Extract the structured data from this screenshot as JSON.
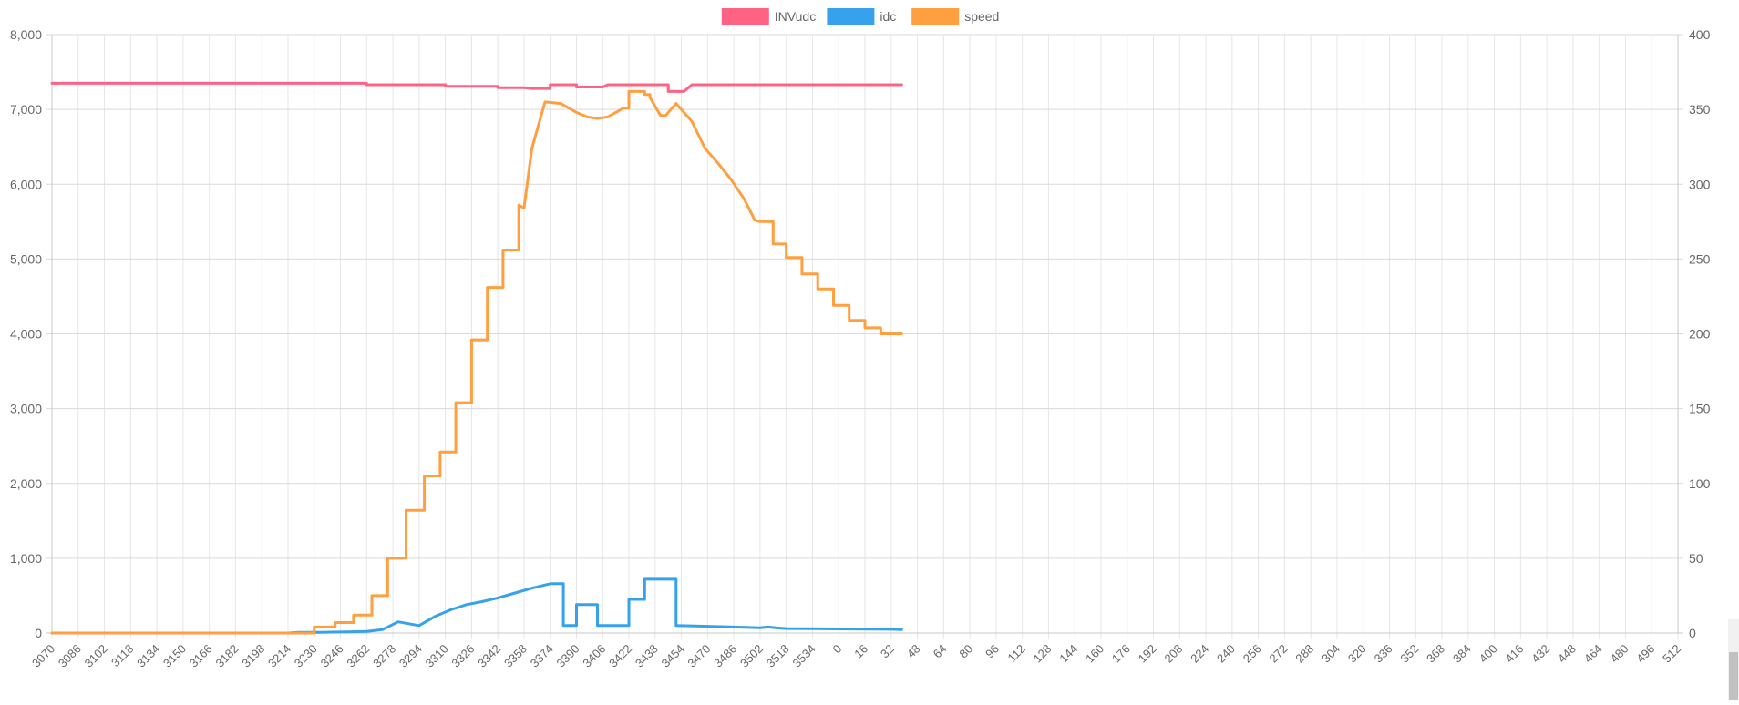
{
  "chart_data": {
    "type": "line",
    "legend_position": "top-center",
    "grid": true,
    "x_labels": [
      "3070",
      "3086",
      "3102",
      "3118",
      "3134",
      "3150",
      "3166",
      "3182",
      "3198",
      "3214",
      "3230",
      "3246",
      "3262",
      "3278",
      "3294",
      "3310",
      "3326",
      "3342",
      "3358",
      "3374",
      "3390",
      "3406",
      "3422",
      "3438",
      "3454",
      "3470",
      "3486",
      "3502",
      "3518",
      "3534",
      "0",
      "16",
      "32",
      "48",
      "64",
      "80",
      "96",
      "112",
      "128",
      "144",
      "160",
      "176",
      "192",
      "208",
      "224",
      "240",
      "256",
      "272",
      "288",
      "304",
      "320",
      "336",
      "352",
      "368",
      "384",
      "400",
      "416",
      "432",
      "448",
      "464",
      "480",
      "496",
      "512"
    ],
    "y_left": {
      "min": 0,
      "max": 8000,
      "ticks": [
        "0",
        "1,000",
        "2,000",
        "3,000",
        "4,000",
        "5,000",
        "6,000",
        "7,000",
        "8,000"
      ]
    },
    "y_right": {
      "min": 0,
      "max": 400,
      "ticks": [
        "0",
        "50",
        "100",
        "150",
        "200",
        "250",
        "300",
        "350",
        "400"
      ]
    },
    "series": [
      {
        "name": "INVudc",
        "color": "#ff6384",
        "axis": "left",
        "x": [
          0,
          12,
          12,
          15,
          15,
          17,
          17,
          18,
          18.3,
          18.6,
          18.8,
          19,
          19,
          20,
          20,
          21,
          21.2,
          21.5,
          21.8,
          22,
          22,
          23,
          23.5,
          23.5,
          23.9,
          24.1,
          24.4,
          24.4,
          25,
          26,
          28,
          30,
          32.4
        ],
        "values": [
          7350,
          7350,
          7330,
          7330,
          7310,
          7310,
          7290,
          7290,
          7280,
          7280,
          7280,
          7280,
          7330,
          7330,
          7300,
          7300,
          7330,
          7330,
          7330,
          7330,
          7330,
          7330,
          7330,
          7240,
          7240,
          7240,
          7330,
          7330,
          7330,
          7330,
          7330,
          7330,
          7330
        ]
      },
      {
        "name": "idc",
        "color": "#36a2eb",
        "axis": "left",
        "x": [
          0,
          9,
          9.2,
          9.2,
          9.4,
          9.4,
          10.2,
          10.2,
          11.2,
          11.2,
          12,
          12,
          12.6,
          12.6,
          13.2,
          13.2,
          14,
          14,
          14.6,
          14.6,
          15.2,
          15.2,
          15.8,
          15.8,
          16.4,
          16.4,
          17,
          17,
          17.6,
          17.6,
          18.3,
          18.3,
          19,
          19,
          19.5,
          19.5,
          20,
          20,
          20.6,
          20.6,
          20.8,
          20.8,
          22,
          22,
          22.6,
          22.6,
          23.2,
          23.2,
          23.8,
          23.8,
          25,
          26,
          27,
          27.3,
          27.6,
          28,
          30,
          32,
          32.4
        ],
        "values": [
          0,
          0,
          5,
          5,
          8,
          8,
          10,
          10,
          15,
          15,
          22,
          22,
          45,
          45,
          150,
          150,
          100,
          100,
          220,
          220,
          310,
          310,
          380,
          380,
          420,
          420,
          470,
          470,
          530,
          530,
          600,
          600,
          660,
          660,
          660,
          100,
          100,
          380,
          380,
          380,
          380,
          100,
          100,
          450,
          450,
          720,
          720,
          720,
          720,
          100,
          90,
          80,
          70,
          80,
          70,
          60,
          55,
          50,
          45
        ]
      },
      {
        "name": "speed",
        "color": "#ff9f40",
        "axis": "right",
        "x": [
          0,
          10,
          10,
          10.8,
          10.8,
          11.5,
          11.5,
          12.2,
          12.2,
          12.8,
          12.8,
          13.5,
          13.5,
          14.2,
          14.2,
          14.8,
          14.8,
          15.4,
          15.4,
          16,
          16,
          16.6,
          16.6,
          17.2,
          17.2,
          17.8,
          17.8,
          18,
          18.3,
          18.3,
          18.8,
          18.8,
          19.4,
          19.4,
          20,
          20,
          20.4,
          20.4,
          20.8,
          20.8,
          21.2,
          21.2,
          21.8,
          21.8,
          22,
          22,
          22.6,
          22.6,
          22.8,
          22.8,
          23.2,
          23.4,
          23.4,
          23.8,
          23.8,
          24.4,
          24.4,
          24.9,
          24.9,
          25.4,
          25.4,
          25.9,
          25.9,
          26.4,
          26.4,
          26.8,
          26.8,
          27,
          27.5,
          27.5,
          28,
          28,
          28.6,
          28.6,
          29.2,
          29.2,
          29.8,
          29.8,
          30.4,
          30.4,
          31,
          31,
          31.6,
          31.6,
          32,
          32.4
        ],
        "values": [
          0,
          0,
          4,
          4,
          7,
          7,
          12,
          12,
          25,
          25,
          50,
          50,
          82,
          82,
          105,
          105,
          121,
          121,
          154,
          154,
          196,
          196,
          231,
          231,
          256,
          256,
          286,
          284,
          324,
          324,
          355,
          355,
          354,
          354,
          348,
          348,
          345,
          345,
          344,
          344,
          345,
          345,
          351,
          351,
          351,
          362,
          362,
          360,
          360,
          358,
          346,
          346,
          346,
          354,
          354,
          342,
          342,
          324,
          324,
          314,
          314,
          303,
          303,
          290,
          290,
          276,
          276,
          275,
          275,
          260,
          260,
          251,
          251,
          240,
          240,
          230,
          230,
          219,
          219,
          209,
          209,
          204,
          204,
          200,
          200,
          200
        ]
      }
    ]
  }
}
